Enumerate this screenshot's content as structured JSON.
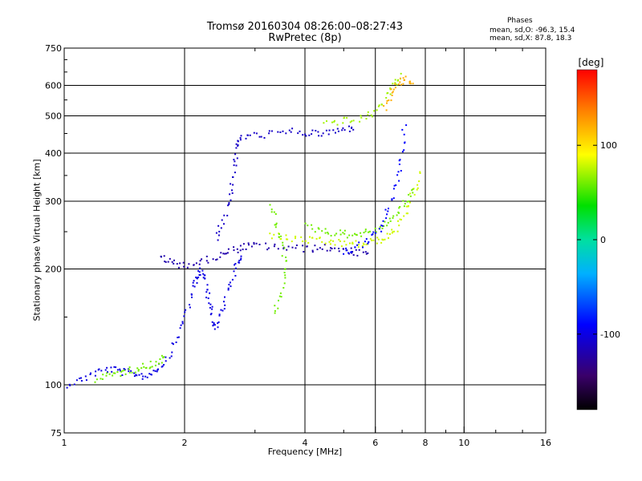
{
  "header": {
    "title_line1": "Tromsø 20160304 08:26:00–08:27:43",
    "title_line2": "RwPretec (8p)",
    "phases_heading": "Phases",
    "phases_line_o": "mean, sd,O: -96.3, 15.4",
    "phases_line_x": "mean, sd,X:  87.8, 18.3"
  },
  "chart_data": {
    "type": "scatter",
    "title": "Tromsø 20160304 08:26:00–08:27:43",
    "subtitle": "RwPretec (8p)",
    "xlabel": "Frequency [MHz]",
    "ylabel": "Stationary phase Virtual Height [km]",
    "x_scale": "log",
    "y_scale": "log",
    "xlim": [
      1,
      16
    ],
    "ylim": [
      75,
      750
    ],
    "x_ticks": [
      1,
      2,
      4,
      6,
      8,
      10,
      16
    ],
    "x_tick_labels": [
      "1",
      "2",
      "4",
      "6",
      "8",
      "10",
      "16"
    ],
    "x_gridlines": [
      2,
      4,
      6,
      8,
      10
    ],
    "y_ticks": [
      75,
      100,
      200,
      300,
      400,
      500,
      600,
      750
    ],
    "y_tick_labels": [
      "75",
      "100",
      "200",
      "300",
      "400",
      "500",
      "600",
      "750"
    ],
    "y_gridlines": [
      100,
      200,
      300,
      400,
      500,
      600
    ],
    "grid": true,
    "colorbar": {
      "label": "[deg]",
      "range": [
        -180,
        180
      ],
      "ticks": [
        100,
        0,
        -100
      ],
      "tick_labels": [
        "100",
        "0",
        "-100"
      ]
    },
    "series": [
      {
        "trace": [
          [
            1.0,
            100
          ],
          [
            1.1,
            103
          ],
          [
            1.2,
            108
          ],
          [
            1.3,
            110
          ],
          [
            1.4,
            108
          ],
          [
            1.5,
            107
          ],
          [
            1.6,
            105
          ],
          [
            1.7,
            110
          ],
          [
            1.8,
            115
          ],
          [
            1.9,
            130
          ],
          [
            2.0,
            150
          ],
          [
            2.1,
            175
          ],
          [
            2.15,
            190
          ],
          [
            2.2,
            200
          ]
        ],
        "phase": -100
      },
      {
        "trace": [
          [
            1.2,
            103
          ],
          [
            1.3,
            106
          ],
          [
            1.4,
            108
          ],
          [
            1.5,
            110
          ],
          [
            1.6,
            112
          ],
          [
            1.7,
            114
          ],
          [
            1.8,
            118
          ]
        ],
        "phase": 60
      },
      {
        "trace": [
          [
            1.75,
            215
          ],
          [
            1.85,
            208
          ],
          [
            2.0,
            205
          ],
          [
            2.2,
            208
          ],
          [
            2.4,
            215
          ],
          [
            2.6,
            222
          ],
          [
            2.8,
            228
          ],
          [
            3.0,
            230
          ],
          [
            3.4,
            228
          ],
          [
            3.8,
            226
          ],
          [
            4.2,
            226
          ],
          [
            4.6,
            227
          ],
          [
            5.0,
            225
          ],
          [
            5.4,
            220
          ],
          [
            5.8,
            218
          ]
        ],
        "phase": -120
      },
      {
        "trace": [
          [
            2.2,
            200
          ],
          [
            2.25,
            185
          ],
          [
            2.3,
            165
          ],
          [
            2.35,
            150
          ],
          [
            2.4,
            140
          ],
          [
            2.5,
            160
          ],
          [
            2.6,
            185
          ],
          [
            2.7,
            205
          ],
          [
            2.8,
            215
          ]
        ],
        "phase": -100
      },
      {
        "trace": [
          [
            2.4,
            240
          ],
          [
            2.5,
            270
          ],
          [
            2.6,
            310
          ],
          [
            2.65,
            360
          ],
          [
            2.7,
            410
          ],
          [
            2.75,
            440
          ],
          [
            3.0,
            445
          ],
          [
            3.4,
            450
          ],
          [
            3.8,
            455
          ],
          [
            4.2,
            448
          ],
          [
            4.6,
            452
          ],
          [
            5.0,
            460
          ],
          [
            5.4,
            470
          ]
        ],
        "phase": -110
      },
      {
        "trace": [
          [
            3.3,
            245
          ],
          [
            3.6,
            240
          ],
          [
            4.0,
            238
          ],
          [
            4.4,
            236
          ],
          [
            4.8,
            234
          ],
          [
            5.2,
            232
          ],
          [
            5.6,
            232
          ],
          [
            6.0,
            236
          ],
          [
            6.4,
            242
          ],
          [
            6.8,
            255
          ],
          [
            7.2,
            280
          ],
          [
            7.5,
            320
          ],
          [
            7.8,
            360
          ]
        ],
        "phase": 80
      },
      {
        "trace": [
          [
            4.0,
            258
          ],
          [
            4.4,
            252
          ],
          [
            4.8,
            248
          ],
          [
            5.2,
            246
          ],
          [
            5.6,
            248
          ],
          [
            6.0,
            252
          ],
          [
            6.4,
            262
          ],
          [
            6.8,
            280
          ],
          [
            7.2,
            300
          ],
          [
            7.5,
            330
          ]
        ],
        "phase": 60
      },
      {
        "trace": [
          [
            5.0,
            220
          ],
          [
            5.4,
            228
          ],
          [
            5.8,
            238
          ],
          [
            6.2,
            258
          ],
          [
            6.5,
            290
          ],
          [
            6.8,
            340
          ],
          [
            7.0,
            400
          ],
          [
            7.1,
            480
          ]
        ],
        "phase": -90
      },
      {
        "trace": [
          [
            4.5,
            480
          ],
          [
            5.0,
            485
          ],
          [
            5.5,
            490
          ],
          [
            6.0,
            510
          ],
          [
            6.4,
            560
          ],
          [
            6.7,
            610
          ],
          [
            7.0,
            640
          ]
        ],
        "phase": 70
      },
      {
        "trace": [
          [
            6.3,
            520
          ],
          [
            6.6,
            570
          ],
          [
            6.9,
            610
          ],
          [
            7.2,
            620
          ],
          [
            7.5,
            600
          ]
        ],
        "phase": 120
      },
      {
        "trace": [
          [
            3.3,
            290
          ],
          [
            3.4,
            260
          ],
          [
            3.5,
            230
          ],
          [
            3.6,
            200
          ],
          [
            3.5,
            170
          ],
          [
            3.3,
            150
          ]
        ],
        "phase": 60
      }
    ]
  }
}
